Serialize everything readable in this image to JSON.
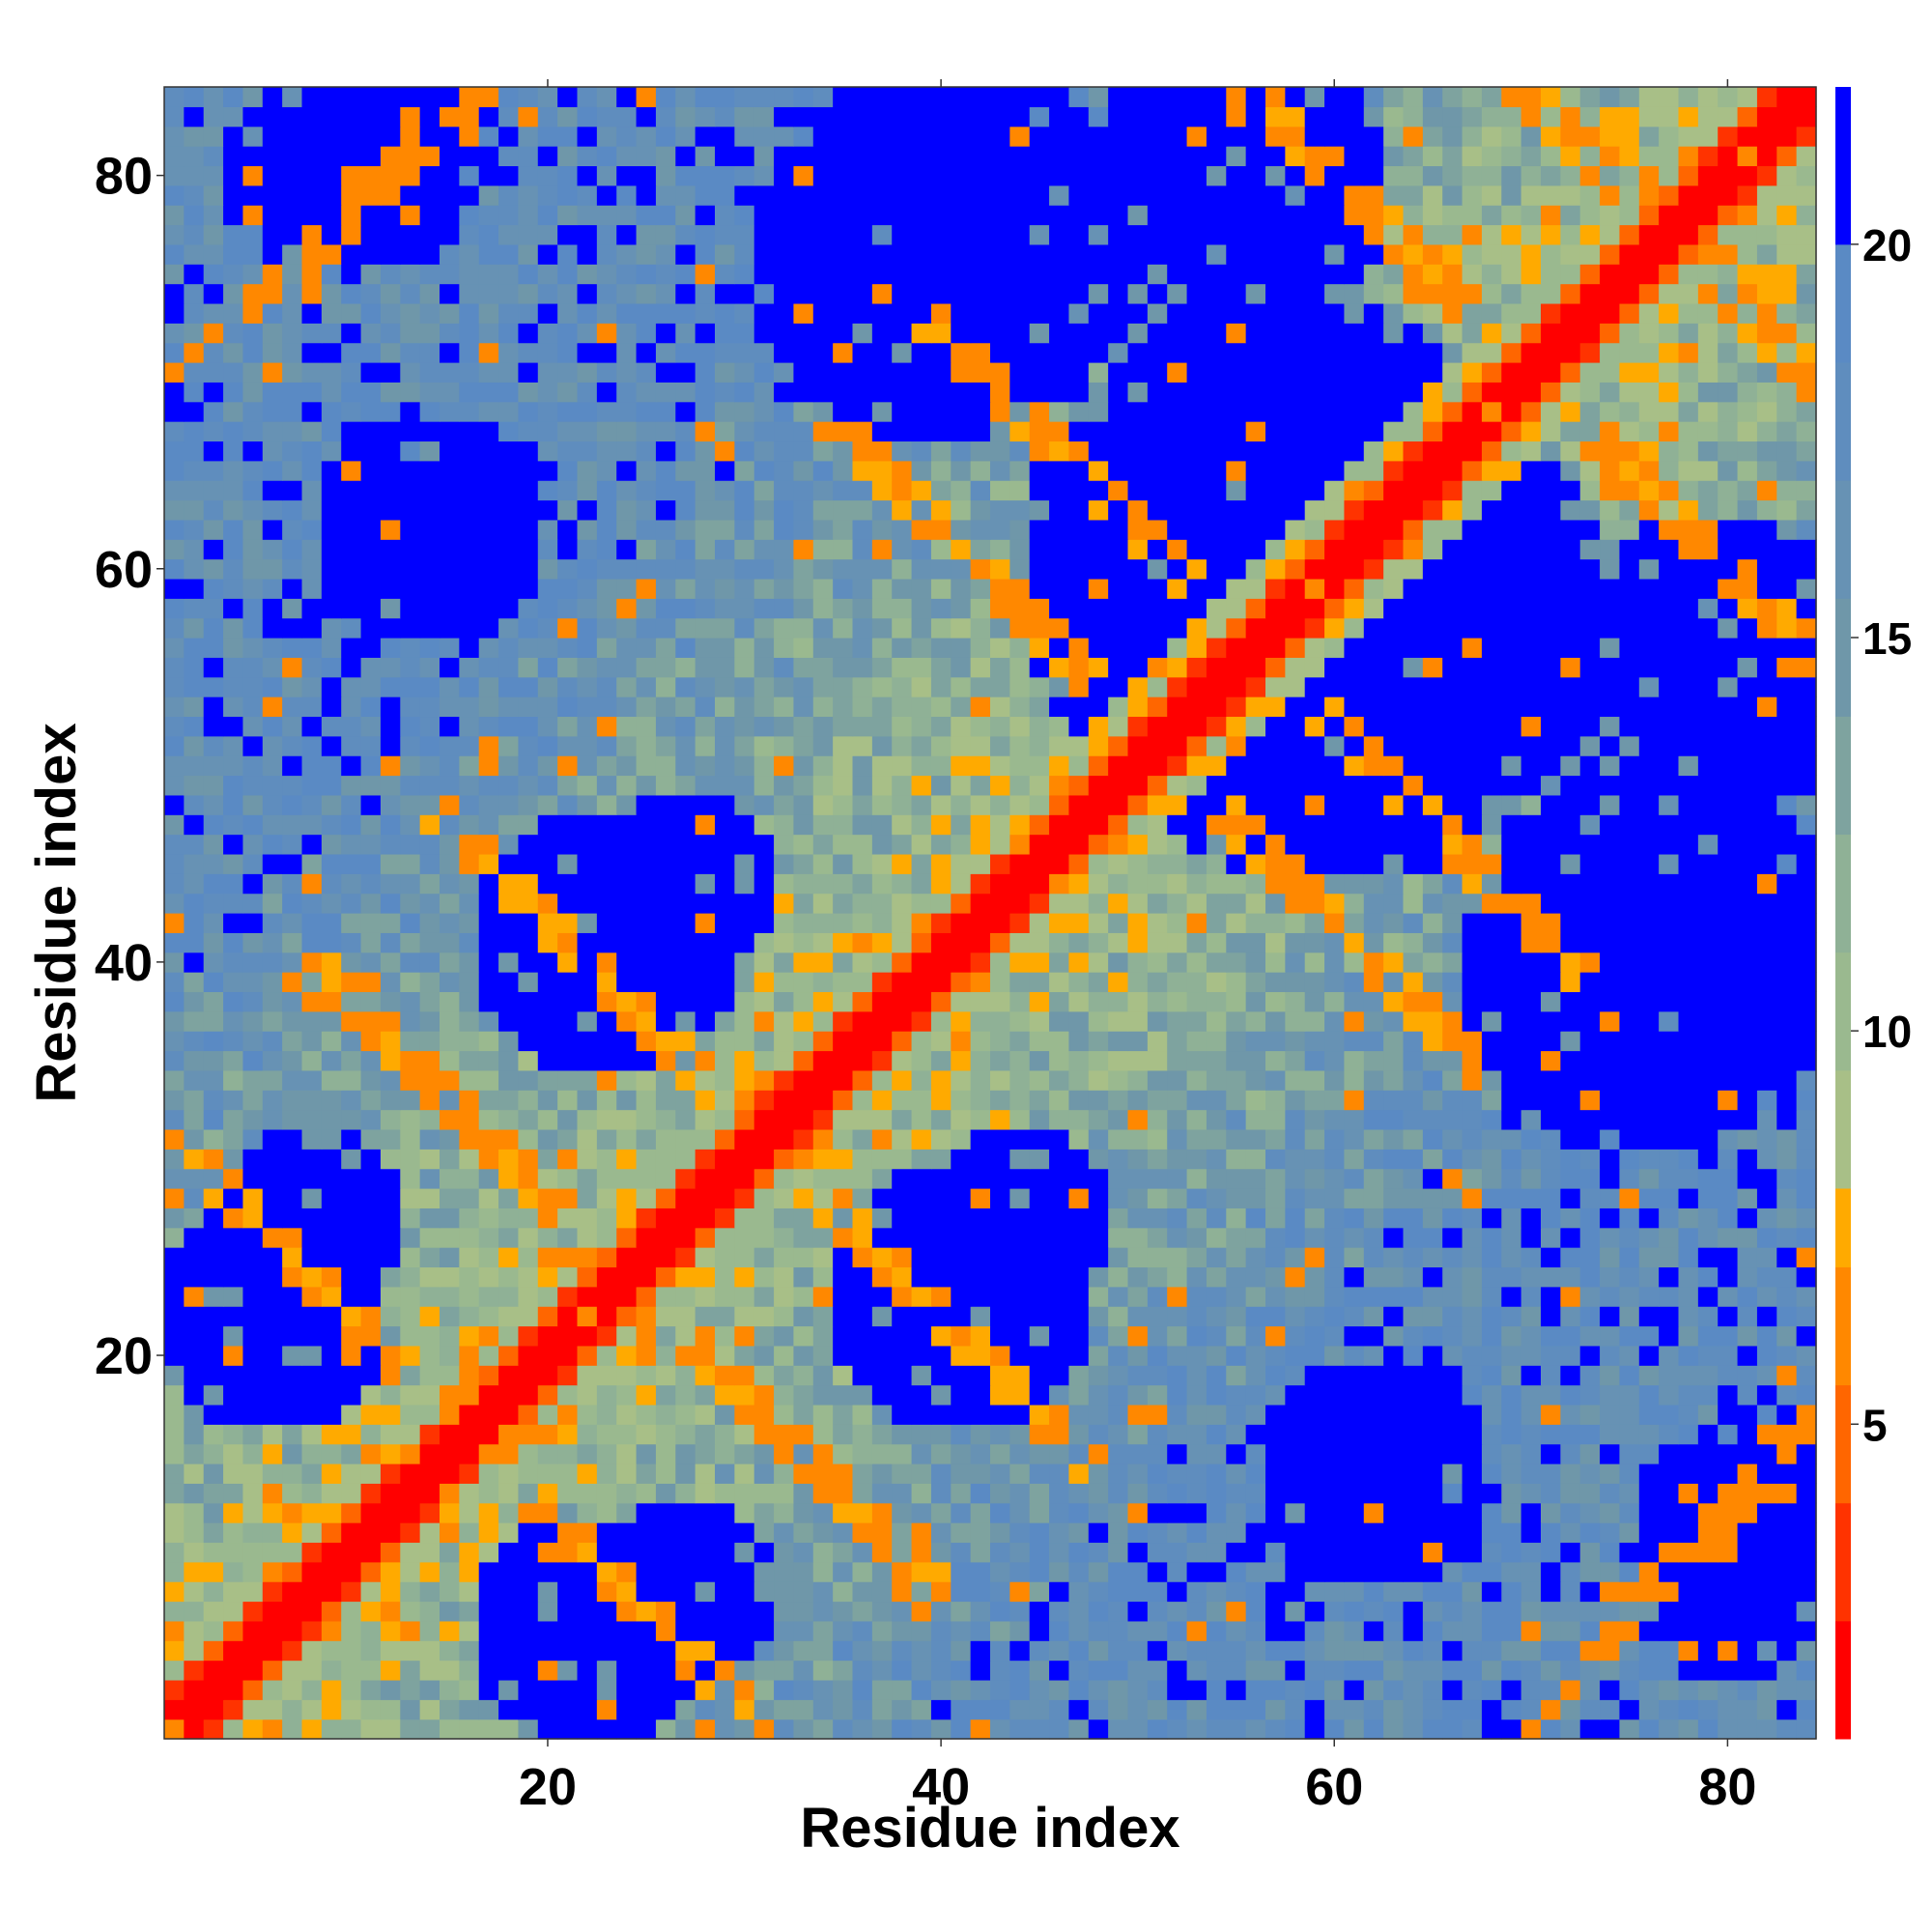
{
  "chart_data": {
    "type": "heatmap",
    "title": "",
    "xlabel": "Residue index",
    "ylabel": "Residue index",
    "x_range": [
      1,
      84
    ],
    "y_range": [
      1,
      84
    ],
    "x_ticks": [
      20,
      40,
      60,
      80
    ],
    "y_ticks": [
      20,
      40,
      60,
      80
    ],
    "n_residues": 84,
    "colorbar": {
      "range": [
        1,
        22
      ],
      "ticks": [
        5,
        10,
        15,
        20
      ],
      "placement": "right",
      "bands": [
        {
          "from": 1,
          "to": 2.5,
          "color": "#ff0000"
        },
        {
          "from": 2.5,
          "to": 4,
          "color": "#ff3300"
        },
        {
          "from": 4,
          "to": 5.5,
          "color": "#ff6600"
        },
        {
          "from": 5.5,
          "to": 7,
          "color": "#ff8800"
        },
        {
          "from": 7,
          "to": 8,
          "color": "#ffaa00"
        },
        {
          "from": 8,
          "to": 9.5,
          "color": "#a8bf87"
        },
        {
          "from": 9.5,
          "to": 11,
          "color": "#9ab98f"
        },
        {
          "from": 11,
          "to": 12.5,
          "color": "#8fb196"
        },
        {
          "from": 12.5,
          "to": 14,
          "color": "#7ea39f"
        },
        {
          "from": 14,
          "to": 15.5,
          "color": "#6f97a9"
        },
        {
          "from": 15.5,
          "to": 17,
          "color": "#6792b4"
        },
        {
          "from": 17,
          "to": 18.5,
          "color": "#5f8dbe"
        },
        {
          "from": 18.5,
          "to": 20,
          "color": "#5a8ac4"
        },
        {
          "from": 20,
          "to": 22,
          "color": "#0000ff"
        }
      ]
    },
    "contact_bands": [
      {
        "d": 0,
        "value": 1.5,
        "tol": 2.2
      },
      {
        "d": 0.1,
        "value": 6.5,
        "tol": 1.2,
        "s": 60
      },
      {
        "d": -0.15,
        "value": 6.2,
        "tol": 1.3,
        "s": 46
      },
      {
        "d": 0,
        "value": 6.0,
        "tol": 1.0,
        "s": 4,
        "d2": 30
      },
      {
        "d": 0,
        "value": 6.0,
        "tol": 1.0,
        "s": 100,
        "d2": 27
      },
      {
        "d": 0,
        "value": 6.3,
        "tol": 1.0,
        "s": 16,
        "d2": 70
      }
    ],
    "far_regions": [
      {
        "x": 58,
        "y": 60,
        "r": 14,
        "value": 21
      },
      {
        "x": 76,
        "y": 40,
        "r": 10,
        "value": 21
      },
      {
        "x": 79,
        "y": 55,
        "r": 8,
        "value": 21
      },
      {
        "x": 14,
        "y": 62,
        "r": 6,
        "value": 21
      },
      {
        "x": 12,
        "y": 80,
        "r": 5,
        "value": 21
      },
      {
        "x": 6,
        "y": 22,
        "r": 6,
        "value": 21
      },
      {
        "x": 41,
        "y": 23,
        "r": 7,
        "value": 21
      },
      {
        "x": 27,
        "y": 44,
        "r": 5,
        "value": 21
      },
      {
        "x": 27,
        "y": 8,
        "r": 5,
        "value": 21
      },
      {
        "x": 62,
        "y": 12,
        "r": 4,
        "value": 21
      },
      {
        "x": 80,
        "y": 8,
        "r": 5,
        "value": 21
      },
      {
        "x": 40,
        "y": 82,
        "r": 5,
        "value": 21
      }
    ]
  }
}
